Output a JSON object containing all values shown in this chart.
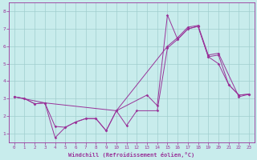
{
  "xlabel": "Windchill (Refroidissement éolien,°C)",
  "xlim": [
    -0.5,
    23.5
  ],
  "ylim": [
    0.5,
    8.5
  ],
  "xticks": [
    0,
    1,
    2,
    3,
    4,
    5,
    6,
    7,
    8,
    9,
    10,
    11,
    12,
    13,
    14,
    15,
    16,
    17,
    18,
    19,
    20,
    21,
    22,
    23
  ],
  "yticks": [
    1,
    2,
    3,
    4,
    5,
    6,
    7,
    8
  ],
  "background_color": "#c8ecec",
  "grid_color": "#a0cece",
  "line_color": "#993399",
  "line1_x": [
    0,
    1,
    2,
    3,
    4,
    5,
    6,
    7,
    8,
    9,
    10,
    11,
    12,
    14,
    15,
    16,
    17,
    18,
    19,
    20,
    21,
    22,
    23
  ],
  "line1_y": [
    3.1,
    3.0,
    2.7,
    2.75,
    1.4,
    1.35,
    1.65,
    1.85,
    1.85,
    1.15,
    2.3,
    1.45,
    2.3,
    2.3,
    5.9,
    6.4,
    7.0,
    7.15,
    5.4,
    5.5,
    3.8,
    3.2,
    3.25
  ],
  "line2_x": [
    0,
    1,
    2,
    3,
    4,
    5,
    6,
    7,
    8,
    9,
    10,
    13,
    14,
    15,
    16,
    17,
    18,
    19,
    20,
    21,
    22,
    23
  ],
  "line2_y": [
    3.1,
    3.0,
    2.7,
    2.75,
    0.75,
    1.35,
    1.65,
    1.85,
    1.85,
    1.15,
    2.3,
    3.2,
    2.6,
    7.8,
    6.4,
    7.0,
    7.15,
    5.4,
    5.0,
    3.8,
    3.2,
    3.25
  ],
  "line3_x": [
    0,
    3,
    10,
    15,
    16,
    17,
    18,
    19,
    20,
    22,
    23
  ],
  "line3_y": [
    3.1,
    2.75,
    2.3,
    6.0,
    6.5,
    7.1,
    7.2,
    5.5,
    5.6,
    3.1,
    3.25
  ]
}
